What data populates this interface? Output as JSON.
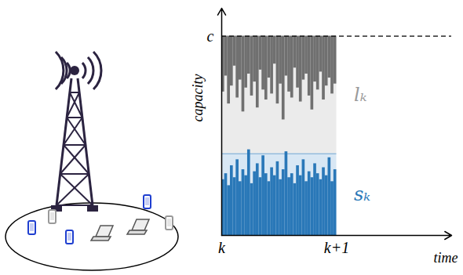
{
  "chart_data": {
    "type": "area",
    "xlabel": "time",
    "ylabel": "capacity",
    "xlim": [
      0,
      2
    ],
    "ylim": [
      0,
      1.14
    ],
    "xticks": [
      {
        "value": 0,
        "label": "k"
      },
      {
        "value": 1,
        "label": "k+1"
      }
    ],
    "yticks": [
      {
        "value": 1,
        "label": "c"
      }
    ],
    "x": [
      0,
      0.025,
      0.05,
      0.075,
      0.1,
      0.125,
      0.15,
      0.175,
      0.2,
      0.225,
      0.25,
      0.275,
      0.3,
      0.325,
      0.35,
      0.375,
      0.4,
      0.425,
      0.45,
      0.475,
      0.5,
      0.525,
      0.55,
      0.575,
      0.6,
      0.625,
      0.65,
      0.675,
      0.7,
      0.725,
      0.75,
      0.775,
      0.8,
      0.825,
      0.85,
      0.875,
      0.9,
      0.925,
      0.95,
      0.975
    ],
    "series": [
      {
        "name": "lₖ",
        "color": "#707070",
        "band_color": "#ebebeb",
        "label_color": "#9a9a9a",
        "values": [
          0.72,
          0.8,
          0.66,
          0.75,
          0.85,
          0.69,
          0.78,
          0.62,
          0.74,
          0.81,
          0.7,
          0.77,
          0.64,
          0.83,
          0.73,
          0.68,
          0.79,
          0.71,
          0.86,
          0.66,
          0.76,
          0.58,
          0.8,
          0.72,
          0.69,
          0.84,
          0.74,
          0.67,
          0.78,
          0.81,
          0.7,
          0.63,
          0.77,
          0.73,
          0.82,
          0.68,
          0.75,
          0.79,
          0.71,
          0.76
        ]
      },
      {
        "name": "sₖ",
        "color": "#2a78b8",
        "band_color": "#d8e7f4",
        "label_color": "#2a78b8",
        "level": 0.41,
        "values": [
          0.28,
          0.31,
          0.25,
          0.35,
          0.29,
          0.38,
          0.27,
          0.33,
          0.3,
          0.43,
          0.26,
          0.32,
          0.36,
          0.29,
          0.4,
          0.31,
          0.27,
          0.34,
          0.3,
          0.37,
          0.28,
          0.33,
          0.42,
          0.29,
          0.31,
          0.26,
          0.35,
          0.3,
          0.38,
          0.27,
          0.32,
          0.29,
          0.36,
          0.31,
          0.28,
          0.34,
          0.3,
          0.39,
          0.27,
          0.33
        ]
      }
    ]
  }
}
